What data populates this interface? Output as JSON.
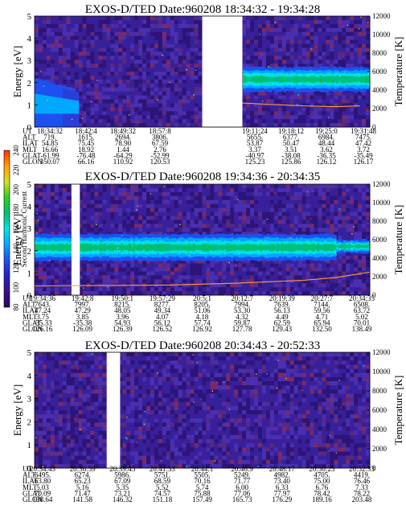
{
  "colorbar": {
    "label": "Second Harmonic Current",
    "ticks": [
      "80",
      "100",
      "120",
      "140",
      "160",
      "180",
      "200",
      "220",
      "240"
    ],
    "stops": [
      "#2a0a55",
      "#3b0f8a",
      "#2222c8",
      "#1e50f0",
      "#00a8ff",
      "#00e5e5",
      "#00c070",
      "#30d020",
      "#d8e020",
      "#ffa000",
      "#ff3000"
    ]
  },
  "chart_data": [
    {
      "type": "heatmap",
      "title": "EXOS-D/TED   Date:960208   18:34:32 - 19:34:28",
      "ylabel": "Energy [eV]",
      "y2label": "Temperature [K]",
      "ylim": [
        0,
        5
      ],
      "y2lim": [
        0,
        12000
      ],
      "yticks": [
        "0",
        "1",
        "2",
        "3",
        "4",
        "5"
      ],
      "y2ticks": [
        "0",
        "2000",
        "4000",
        "6000",
        "8000",
        "10000",
        "12000"
      ],
      "orbit_labels": [
        "UT",
        "ALT",
        "ILAT",
        "MLT",
        "GLAT",
        "GLON"
      ],
      "orbit_columns": [
        [
          "18:34:32",
          "719.",
          "54.85",
          "16.66",
          "-61.99",
          "350.07"
        ],
        [
          "18:42:4",
          "1615.",
          "75.45",
          "18.92",
          "-76.48",
          "66.16"
        ],
        [
          "18:49:32",
          "2694.",
          "78.90",
          "1.44",
          "-64.29",
          "110.92"
        ],
        [
          "18:57:8",
          "3806.",
          "67.59",
          "2.76",
          "-52.99",
          "120.53"
        ],
        [
          "19:11:24",
          "5655.",
          "53.87",
          "3.37",
          "-40.97",
          "125.23"
        ],
        [
          "19:18:12",
          "6377.",
          "50.47",
          "3.51",
          "-38.08",
          "125.86"
        ],
        [
          "19:25:0",
          "6984.",
          "48.44",
          "3.62",
          "-36.35",
          "126.12"
        ],
        [
          "19:31:48",
          "7475.",
          "47.42",
          "3.72",
          "-35.49",
          "126.17"
        ]
      ],
      "data_gap_fraction": [
        0.5,
        0.62
      ],
      "temperature_trace": [
        [
          0.62,
          2600
        ],
        [
          0.7,
          2450
        ],
        [
          0.8,
          2300
        ],
        [
          0.9,
          2200
        ],
        [
          0.97,
          2300
        ]
      ]
    },
    {
      "type": "heatmap",
      "title": "EXOS-D/TED   Date:960208   19:34:36 - 20:34:35",
      "ylabel": "Energy [eV]",
      "y2label": "Temperature [K]",
      "ylim": [
        0,
        5
      ],
      "y2lim": [
        0,
        12000
      ],
      "yticks": [
        "0",
        "1",
        "2",
        "3",
        "4",
        "5"
      ],
      "y2ticks": [
        "0",
        "2000",
        "4000",
        "6000",
        "8000",
        "10000",
        "12000"
      ],
      "orbit_labels": [
        "UT",
        "ALT",
        "ILAT",
        "MLT",
        "GLAT",
        "GLON"
      ],
      "orbit_columns": [
        [
          "19:34:36",
          "7643.",
          "47.24",
          "3.75",
          "-35.33",
          "126.16"
        ],
        [
          "19:42:8",
          "7997.",
          "47.29",
          "3.85",
          "-35.38",
          "126.09"
        ],
        [
          "19:50:1",
          "8215.",
          "48.05",
          "3.96",
          "54.93",
          "126.39"
        ],
        [
          "19:57:29",
          "8277.",
          "49.34",
          "4.07",
          "56.12",
          "126.52"
        ],
        [
          "20:5:1",
          "8205.",
          "51.06",
          "4.18",
          "57.74",
          "126.92"
        ],
        [
          "20:12:7",
          "7994.",
          "53.30",
          "4.32",
          "59.87",
          "127.78"
        ],
        [
          "20:19:39",
          "7639.",
          "56.13",
          "4.49",
          "62.59",
          "129.43"
        ],
        [
          "20:27:7",
          "7144.",
          "59.56",
          "4.71",
          "65.94",
          "132.50"
        ],
        [
          "20:34:35",
          "6508.",
          "63.72",
          "5.02",
          "70.01",
          "138.49"
        ]
      ],
      "data_gap_fraction": [
        0.11,
        0.135
      ],
      "temperature_trace": [
        [
          0.0,
          1000
        ],
        [
          0.2,
          1050
        ],
        [
          0.4,
          1100
        ],
        [
          0.6,
          1300
        ],
        [
          0.8,
          1600
        ],
        [
          0.9,
          1900
        ],
        [
          1.0,
          2500
        ]
      ]
    },
    {
      "type": "heatmap",
      "title": "EXOS-D/TED   Date:960208   20:34:43 - 20:52:33",
      "ylabel": "Energy [eV]",
      "y2label": "Temperature [K]",
      "ylim": [
        0,
        5
      ],
      "y2lim": [
        0,
        12000
      ],
      "yticks": [
        "0",
        "1",
        "2",
        "3",
        "4",
        "5"
      ],
      "y2ticks": [
        "0",
        "2000",
        "4000",
        "6000",
        "8000",
        "10000",
        "12000"
      ],
      "orbit_labels": [
        "UT",
        "ALT",
        "ILAT",
        "MLT",
        "GLAT",
        "GLON"
      ],
      "orbit_columns": [
        [
          "20:34:43",
          "6495.",
          "63.80",
          "5.03",
          "70.09",
          "138.64"
        ],
        [
          "20:36:59",
          "6274.",
          "65.23",
          "5.16",
          "71.47",
          "141.58"
        ],
        [
          "20:39:45",
          "5986.",
          "67.09",
          "5.35",
          "73.21",
          "146.32"
        ],
        [
          "20:41:53",
          "5751.",
          "68.59",
          "5.52",
          "74.57",
          "151.18"
        ],
        [
          "20:44:1",
          "5505.",
          "70.16",
          "5.74",
          "75.88",
          "157.49"
        ],
        [
          "20:46:9",
          "5249.",
          "71.77",
          "6.00",
          "77.06",
          "165.73"
        ],
        [
          "20:48:17",
          "4982.",
          "73.40",
          "6.33",
          "77.97",
          "176.29"
        ],
        [
          "20:50:25",
          "4705.",
          "75.00",
          "6.76",
          "78.42",
          "189.16"
        ],
        [
          "20:52:33",
          "4419.",
          "76.46",
          "7.33",
          "78.22",
          "203.48"
        ]
      ],
      "data_gap_fraction": [
        0.215,
        0.255
      ],
      "temperature_trace": []
    }
  ]
}
